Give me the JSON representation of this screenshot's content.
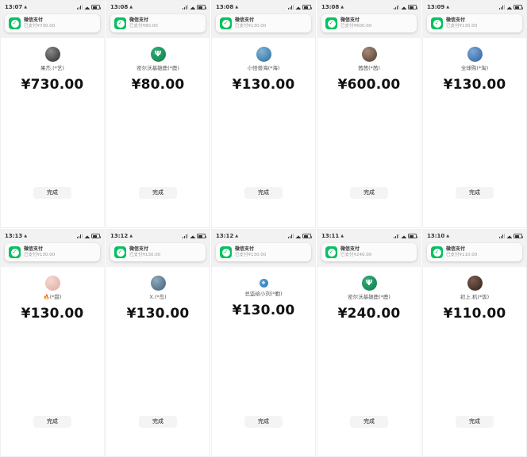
{
  "app": "wechat-payment-success-grid",
  "banner": {
    "title": "微信支付"
  },
  "button_label": "完成",
  "colors": {
    "wechat_green": "#07c160",
    "tile_top_bg": "#f2f2f3",
    "button_bg": "#f4f4f4",
    "amount_text": "#111111"
  },
  "status_icons": [
    "cellular-signal",
    "wifi",
    "battery"
  ],
  "tiles": [
    {
      "time": "13:07",
      "name": "果杰.(*艺)",
      "amount": "¥730.00",
      "banner_sub": "已支付¥730.00",
      "avatar": {
        "glyph": "",
        "c1": "#8a8a8a",
        "c2": "#2b2b2b",
        "small": false
      }
    },
    {
      "time": "13:08",
      "name": "密尔沃基雄鹿(*鹿)",
      "amount": "¥80.00",
      "banner_sub": "已支付¥80.00",
      "avatar": {
        "glyph": "Ψ",
        "c1": "#2fae74",
        "c2": "#157a4e",
        "small": false
      }
    },
    {
      "time": "13:08",
      "name": "小怪兽海(*海)",
      "amount": "¥130.00",
      "banner_sub": "已支付¥130.00",
      "avatar": {
        "glyph": "",
        "c1": "#7fb6d9",
        "c2": "#2e6a96",
        "small": false
      }
    },
    {
      "time": "13:08",
      "name": "茜茜(*茜)",
      "amount": "¥600.00",
      "banner_sub": "已支付¥600.00",
      "avatar": {
        "glyph": "",
        "c1": "#a78a77",
        "c2": "#4e3a2e",
        "small": false
      }
    },
    {
      "time": "13:09",
      "name": "全球购(*淘)",
      "amount": "¥130.00",
      "banner_sub": "已支付¥130.00",
      "avatar": {
        "glyph": "",
        "c1": "#7aa8d8",
        "c2": "#2f5f9e",
        "small": false
      }
    },
    {
      "time": "13:13",
      "name": "🔥(*甜)",
      "amount": "¥130.00",
      "banner_sub": "已支付¥130.00",
      "avatar": {
        "glyph": "",
        "c1": "#f6d9d2",
        "c2": "#e0a9a0",
        "small": false
      }
    },
    {
      "time": "13:12",
      "name": "X.(*岛)",
      "amount": "¥130.00",
      "banner_sub": "已支付¥130.00",
      "avatar": {
        "glyph": "",
        "c1": "#8fa9bb",
        "c2": "#3f617a",
        "small": false
      }
    },
    {
      "time": "13:12",
      "name": "总监给小刘(*勤)",
      "amount": "¥130.00",
      "banner_sub": "已支付¥130.00",
      "avatar": {
        "glyph": "❖",
        "c1": "#4f9fd8",
        "c2": "#2e7dbb",
        "small": true
      }
    },
    {
      "time": "13:11",
      "name": "密尔沃基雄鹿(*鹿)",
      "amount": "¥240.00",
      "banner_sub": "已支付¥240.00",
      "avatar": {
        "glyph": "Ψ",
        "c1": "#2fae74",
        "c2": "#157a4e",
        "small": false
      }
    },
    {
      "time": "13:10",
      "name": "初上.机(*饭)",
      "amount": "¥110.00",
      "banner_sub": "已支付¥110.00",
      "avatar": {
        "glyph": "",
        "c1": "#7b5c4c",
        "c2": "#2e201a",
        "small": false
      }
    }
  ]
}
